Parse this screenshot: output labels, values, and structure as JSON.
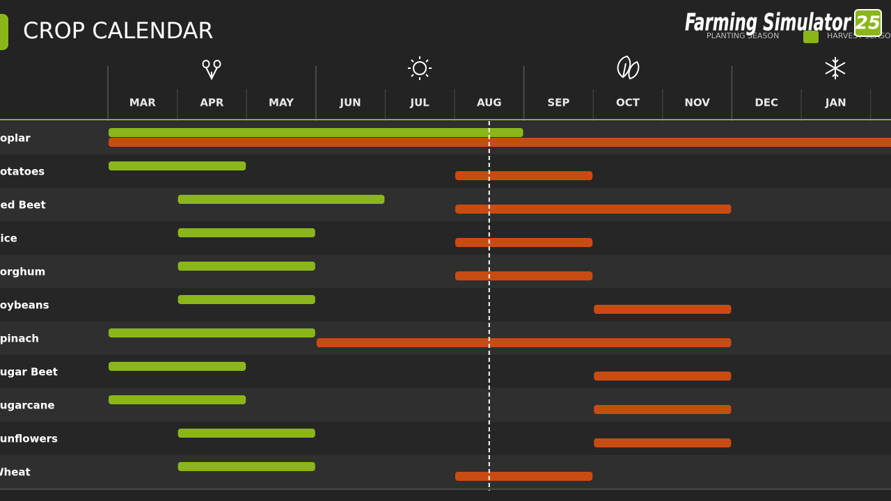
{
  "header": {
    "title": "CROP CALENDAR",
    "logo_text": "Farming Simulator",
    "logo_number": "25",
    "legend": {
      "planting": "PLANTING SEASON",
      "harvest": "HARVEST SEASON"
    }
  },
  "calendar": {
    "months": [
      "MAR",
      "APR",
      "MAY",
      "JUN",
      "JUL",
      "AUG",
      "SEP",
      "OCT",
      "NOV",
      "DEC",
      "JAN"
    ],
    "today": 5.5,
    "rows": [
      {
        "crop": "Poplar",
        "plant": [
          0,
          6
        ],
        "harvest": [
          0,
          13
        ]
      },
      {
        "crop": "Potatoes",
        "plant": [
          0,
          2
        ],
        "harvest": [
          5,
          7
        ]
      },
      {
        "crop": "Red Beet",
        "plant": [
          1,
          4
        ],
        "harvest": [
          5,
          9
        ]
      },
      {
        "crop": "Rice",
        "plant": [
          1,
          3
        ],
        "harvest": [
          5,
          7
        ]
      },
      {
        "crop": "Sorghum",
        "plant": [
          1,
          3
        ],
        "harvest": [
          5,
          7
        ]
      },
      {
        "crop": "Soybeans",
        "plant": [
          1,
          3
        ],
        "harvest": [
          7,
          9
        ]
      },
      {
        "crop": "Spinach",
        "plant": [
          0,
          3
        ],
        "harvest": [
          3,
          9
        ]
      },
      {
        "crop": "Sugar Beet",
        "plant": [
          0,
          2
        ],
        "harvest": [
          7,
          9
        ]
      },
      {
        "crop": "Sugarcane",
        "plant": [
          0,
          2
        ],
        "harvest": [
          7,
          9
        ]
      },
      {
        "crop": "Sunflowers",
        "plant": [
          1,
          3
        ],
        "harvest": [
          7,
          9
        ]
      },
      {
        "crop": "Wheat",
        "plant": [
          1,
          3
        ],
        "harvest": [
          5,
          7
        ]
      }
    ]
  }
}
